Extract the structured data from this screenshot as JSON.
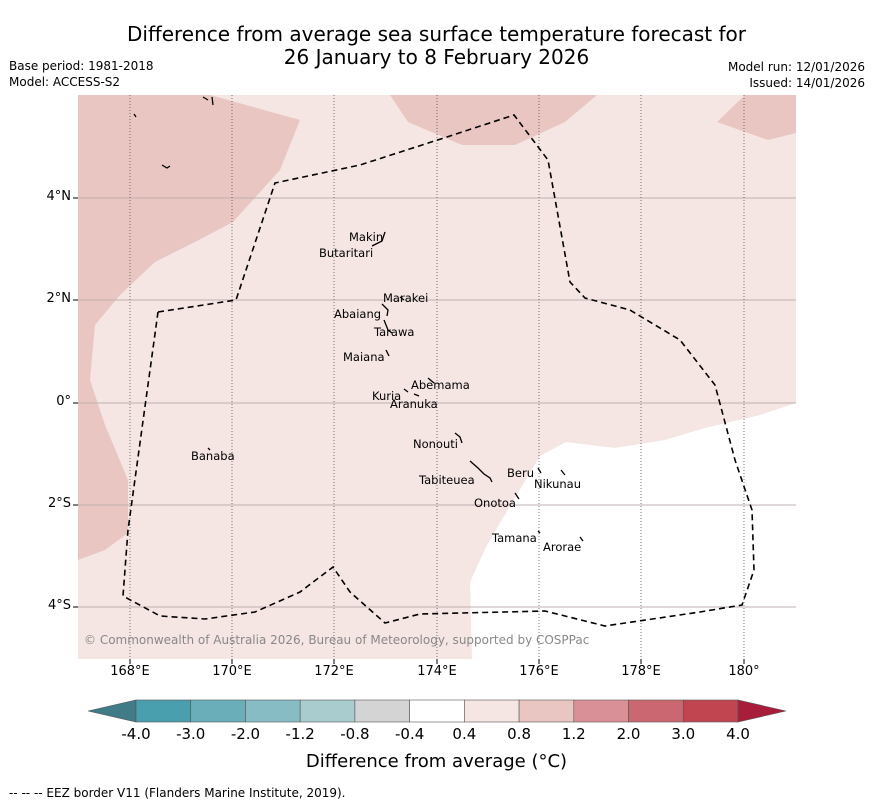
{
  "title": {
    "line1": "Difference from average sea surface temperature forecast for",
    "line2": "26 January to 8 February 2026"
  },
  "meta": {
    "base_period": "Base period: 1981-2018",
    "model": "Model: ACCESS-S2",
    "model_run": "Model run: 12/01/2026",
    "issued": "Issued: 14/01/2026"
  },
  "map": {
    "lon_range": [
      167,
      181
    ],
    "lat_range": [
      -5,
      6
    ],
    "x_ticks": [
      "168°E",
      "170°E",
      "172°E",
      "174°E",
      "176°E",
      "178°E",
      "180°"
    ],
    "y_ticks": [
      "4°N",
      "2°N",
      "0°",
      "2°S",
      "4°S"
    ],
    "islands": [
      {
        "name": "Makin",
        "lon": 172.9,
        "lat": 3.2
      },
      {
        "name": "Butaritari",
        "lon": 172.8,
        "lat": 3.05
      },
      {
        "name": "Marakei",
        "lon": 173.3,
        "lat": 2.0
      },
      {
        "name": "Abaiang",
        "lon": 173.0,
        "lat": 1.85
      },
      {
        "name": "Tarawa",
        "lon": 173.0,
        "lat": 1.4
      },
      {
        "name": "Maiana",
        "lon": 173.0,
        "lat": 0.95
      },
      {
        "name": "Abemama",
        "lon": 173.85,
        "lat": 0.45
      },
      {
        "name": "Kuria",
        "lon": 173.4,
        "lat": 0.22
      },
      {
        "name": "Aranuka",
        "lon": 173.6,
        "lat": 0.17
      },
      {
        "name": "Nonouti",
        "lon": 174.4,
        "lat": -0.65
      },
      {
        "name": "Banaba",
        "lon": 169.5,
        "lat": -0.87
      },
      {
        "name": "Tabiteuea",
        "lon": 174.8,
        "lat": -1.3
      },
      {
        "name": "Beru",
        "lon": 176.0,
        "lat": -1.3
      },
      {
        "name": "Nikunau",
        "lon": 176.45,
        "lat": -1.35
      },
      {
        "name": "Onotoa",
        "lon": 175.55,
        "lat": -1.8
      },
      {
        "name": "Tamana",
        "lon": 175.98,
        "lat": -2.5
      },
      {
        "name": "Arorae",
        "lon": 176.8,
        "lat": -2.63
      }
    ],
    "copyright": "© Commonwealth of Australia 2026, Bureau of Meteorology, supported by COSPPac"
  },
  "colorbar": {
    "labels": [
      "-4.0",
      "-3.0",
      "-2.0",
      "-1.2",
      "-0.8",
      "-0.4",
      "0.4",
      "0.8",
      "1.2",
      "2.0",
      "3.0",
      "4.0"
    ],
    "colors": [
      "#4a9fae",
      "#6aaeba",
      "#88bcc5",
      "#a9cccf",
      "#d4d4d4",
      "#ffffff",
      "#f5e6e4",
      "#e9c6c1",
      "#d99197",
      "#cb6770",
      "#c04551"
    ],
    "low_extend_color": "#3f7c88",
    "high_extend_color": "#a81e3a",
    "label": "Difference from average (°C)"
  },
  "legend_note": "-- -- -- EEZ border V11 (Flanders Marine Institute, 2019).",
  "chart_data": {
    "type": "heatmap",
    "title": "Difference from average sea surface temperature forecast for 26 January to 8 February 2026",
    "variable": "Sea surface temperature anomaly (°C)",
    "categories_present": [
      {
        "range": "-0.4 to 0.4",
        "color": "#ffffff",
        "region": "south-east of the map"
      },
      {
        "range": "0.4 to 0.8",
        "color": "#f5e6e4",
        "region": "most of the map"
      },
      {
        "range": "0.8 to 1.2",
        "color": "#e9c6c1",
        "region": "north-west, west edge, north-central and north-east corners"
      }
    ],
    "x_axis": {
      "range": [
        167,
        181
      ],
      "units": "degrees longitude"
    },
    "y_axis": {
      "range": [
        -5,
        6
      ],
      "units": "degrees latitude"
    }
  }
}
